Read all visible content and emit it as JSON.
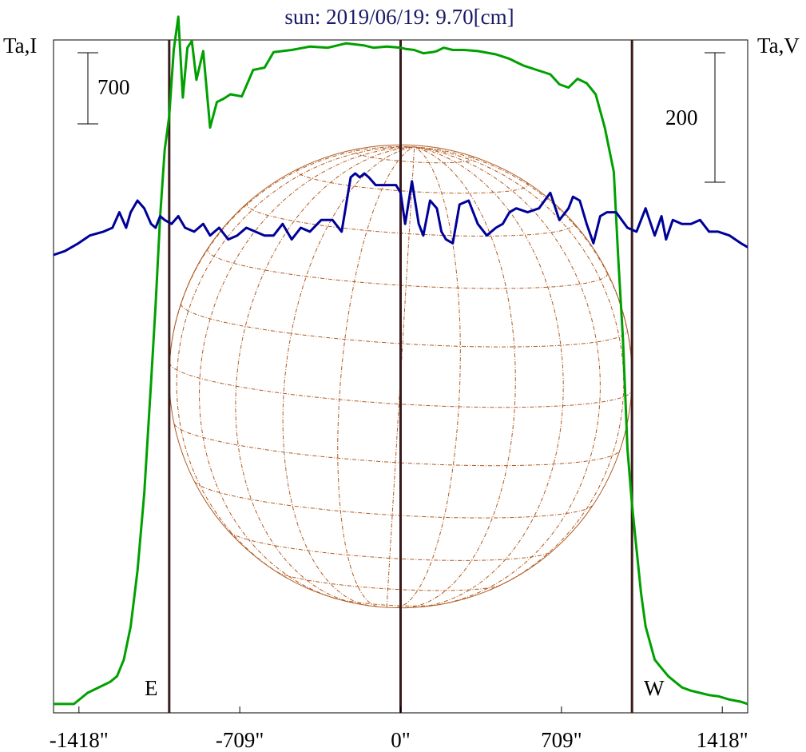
{
  "chart_data": {
    "type": "line",
    "title": "sun: 2019/06/19: 9.70[cm]",
    "ylabel_left": "Ta,I",
    "ylabel_right": "Ta,V",
    "xlim": [
      -1530,
      1530
    ],
    "x_ticks": [
      -1418,
      -709,
      0,
      709,
      1418
    ],
    "x_tick_labels": [
      "-1418\"",
      "-709\"",
      "0\"",
      "709\"",
      "1418\""
    ],
    "limb_lines": [
      -1020,
      0,
      1020
    ],
    "limb_labels": {
      "east": "E",
      "west": "W"
    },
    "scale_bar_left": {
      "label": "700",
      "value": 700,
      "axis": "Ta,I"
    },
    "scale_bar_right": {
      "label": "200",
      "value": 200,
      "axis": "Ta,V"
    },
    "ylim_I": [
      -40,
      2995
    ],
    "ylim_V": [
      -600,
      267
    ],
    "series": [
      {
        "name": "Ta,I",
        "color": "#00a000",
        "x": [
          -1530,
          -1440,
          -1380,
          -1330,
          -1280,
          -1250,
          -1220,
          -1190,
          -1160,
          -1130,
          -1100,
          -1080,
          -1060,
          -1040,
          -1020,
          -1000,
          -980,
          -960,
          -940,
          -920,
          -900,
          -870,
          -840,
          -810,
          -780,
          -750,
          -700,
          -650,
          -600,
          -560,
          -520,
          -480,
          -400,
          -320,
          -240,
          -160,
          -120,
          -60,
          0,
          20,
          60,
          100,
          140,
          160,
          190,
          230,
          280,
          340,
          420,
          480,
          540,
          600,
          660,
          700,
          740,
          780,
          820,
          860,
          900,
          940,
          960,
          980,
          1000,
          1020,
          1040,
          1060,
          1080,
          1100,
          1120,
          1140,
          1160,
          1180,
          1210,
          1240,
          1280,
          1320,
          1360,
          1400,
          1450,
          1500,
          1530
        ],
        "values": [
          0,
          0,
          50,
          75,
          100,
          125,
          200,
          350,
          600,
          950,
          1450,
          1800,
          2200,
          2500,
          2650,
          2950,
          3100,
          2735,
          2960,
          2990,
          2815,
          2945,
          2600,
          2715,
          2730,
          2750,
          2740,
          2860,
          2870,
          2940,
          2945,
          2950,
          2965,
          2960,
          2980,
          2970,
          2960,
          2965,
          2960,
          2955,
          2950,
          2935,
          2940,
          2945,
          2960,
          2950,
          2950,
          2945,
          2930,
          2910,
          2880,
          2860,
          2840,
          2795,
          2780,
          2820,
          2800,
          2750,
          2600,
          2400,
          2000,
          1650,
          1150,
          900,
          700,
          500,
          350,
          275,
          200,
          175,
          150,
          125,
          100,
          75,
          60,
          50,
          40,
          35,
          20,
          10,
          0
        ]
      },
      {
        "name": "Ta,V",
        "color": "#000099",
        "x": [
          -1530,
          -1480,
          -1420,
          -1370,
          -1310,
          -1270,
          -1240,
          -1210,
          -1190,
          -1160,
          -1130,
          -1100,
          -1080,
          -1060,
          -1040,
          -1010,
          -980,
          -950,
          -910,
          -870,
          -840,
          -800,
          -760,
          -720,
          -680,
          -640,
          -600,
          -560,
          -520,
          -480,
          -440,
          -400,
          -350,
          -300,
          -260,
          -220,
          -200,
          -180,
          -160,
          -140,
          -110,
          -80,
          -60,
          -40,
          -20,
          0,
          20,
          50,
          80,
          100,
          130,
          160,
          180,
          200,
          230,
          260,
          300,
          340,
          380,
          420,
          450,
          480,
          510,
          560,
          610,
          660,
          700,
          740,
          760,
          790,
          820,
          850,
          880,
          910,
          950,
          1000,
          1040,
          1080,
          1120,
          1150,
          1170,
          1200,
          1240,
          1280,
          1320,
          1360,
          1400,
          1450,
          1500,
          1530
        ],
        "values": [
          -10,
          -5,
          5,
          15,
          20,
          25,
          45,
          25,
          45,
          60,
          50,
          30,
          25,
          40,
          35,
          30,
          40,
          25,
          20,
          30,
          15,
          25,
          10,
          15,
          25,
          20,
          15,
          15,
          30,
          10,
          25,
          20,
          35,
          35,
          20,
          90,
          95,
          90,
          95,
          90,
          80,
          80,
          80,
          80,
          80,
          70,
          30,
          85,
          30,
          15,
          60,
          50,
          20,
          10,
          5,
          55,
          60,
          30,
          15,
          25,
          30,
          45,
          50,
          45,
          50,
          70,
          35,
          50,
          65,
          60,
          30,
          5,
          40,
          45,
          45,
          25,
          20,
          50,
          15,
          40,
          10,
          35,
          30,
          30,
          35,
          20,
          20,
          15,
          5,
          0
        ]
      }
    ],
    "colors": {
      "title": "#1a1a66",
      "axis": "#000000",
      "limb_line": "#3a1a1a",
      "disk_grid": "#b05a20",
      "curve_I": "#00a000",
      "curve_V": "#000099"
    }
  }
}
